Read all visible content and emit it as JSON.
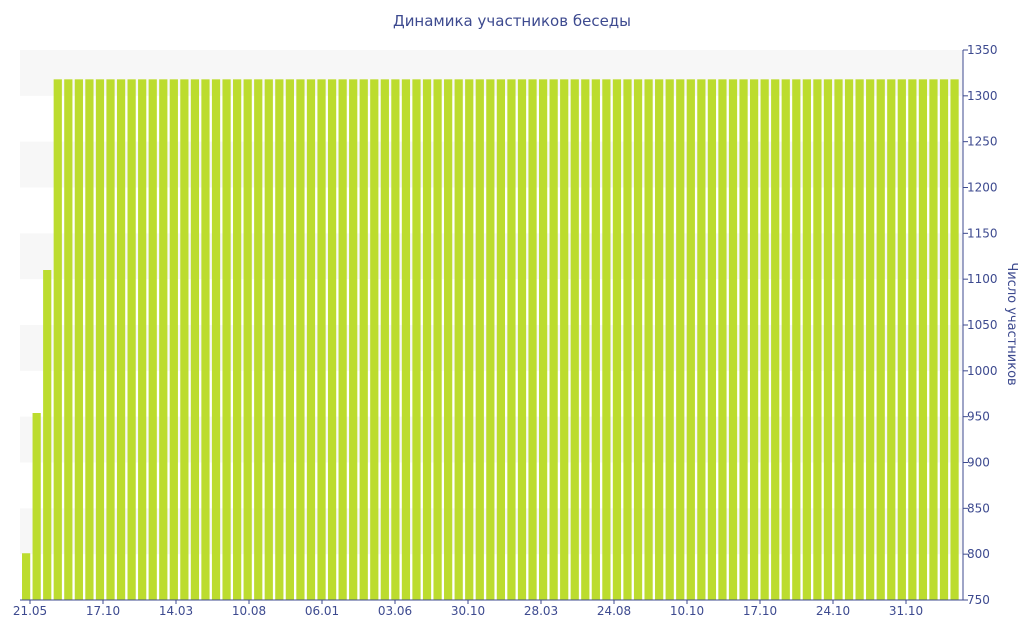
{
  "chart_data": {
    "type": "bar",
    "title": "Динамика участников беседы",
    "xlabel": "",
    "ylabel": "Число участников",
    "y_axis_position": "right",
    "ylim": [
      750,
      1350
    ],
    "yticks": [
      750,
      800,
      850,
      900,
      950,
      1000,
      1050,
      1100,
      1150,
      1200,
      1250,
      1300,
      1350
    ],
    "xtick_labels": [
      "21.05",
      "17.10",
      "14.03",
      "10.08",
      "06.01",
      "03.06",
      "30.10",
      "28.03",
      "24.08",
      "10.10",
      "17.10",
      "24.10",
      "31.10"
    ],
    "grid": "alternating horizontal bands",
    "colors": {
      "bar": "#bcdc2e",
      "axis": "#3d4a8f",
      "band": "#f7f7f7"
    },
    "series": [
      {
        "values": [
          801,
          954,
          1110,
          1318,
          1318,
          1318,
          1318,
          1318,
          1318,
          1318,
          1318,
          1318,
          1318,
          1318,
          1318,
          1318,
          1318,
          1318,
          1318,
          1318,
          1318,
          1318,
          1318,
          1318,
          1318,
          1318,
          1318,
          1318,
          1318,
          1318,
          1318,
          1318,
          1318,
          1318,
          1318,
          1318,
          1318,
          1318,
          1318,
          1318,
          1318,
          1318,
          1318,
          1318,
          1318,
          1318,
          1318,
          1318,
          1318,
          1318,
          1318,
          1318,
          1318,
          1318,
          1318,
          1318,
          1318,
          1318,
          1318,
          1318,
          1318,
          1318,
          1318,
          1318,
          1318,
          1318,
          1318,
          1318,
          1318,
          1318,
          1318,
          1318,
          1318,
          1318,
          1318,
          1318,
          1318,
          1318,
          1318,
          1318,
          1318,
          1318,
          1318,
          1318,
          1318,
          1318,
          1318,
          1318,
          1318
        ]
      }
    ]
  }
}
